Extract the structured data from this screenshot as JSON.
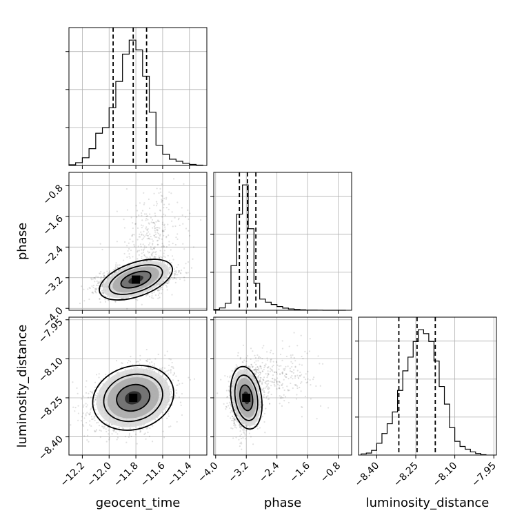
{
  "chart_data": {
    "type": "corner",
    "title": "",
    "parameters": [
      {
        "name": "geocent_time",
        "label": "geocent_time",
        "range": [
          -12.3,
          -11.27
        ],
        "ticks": [
          -12.2,
          -12.0,
          -11.8,
          -11.6,
          -11.4
        ],
        "tick_labels": [
          "−12.2",
          "−12.0",
          "−11.8",
          "−11.6",
          "−11.4"
        ]
      },
      {
        "name": "phase",
        "label": "phase",
        "range": [
          -4.05,
          -0.45
        ],
        "ticks": [
          -4.0,
          -3.2,
          -2.4,
          -1.6,
          -0.8
        ],
        "tick_labels": [
          "−4.0",
          "−3.2",
          "−2.4",
          "−1.6",
          "−0.8"
        ]
      },
      {
        "name": "luminosity_distance",
        "label": "luminosity_distance",
        "range": [
          -8.47,
          -7.94
        ],
        "ticks": [
          -8.4,
          -8.25,
          -8.1,
          -7.95
        ],
        "tick_labels": [
          "−8.40",
          "−8.25",
          "−8.10",
          "−7.95"
        ]
      }
    ],
    "grid": true,
    "quantile_lines": [
      [
        -11.97,
        -11.82,
        -11.72
      ],
      [
        -3.38,
        -3.17,
        -2.95
      ],
      [
        -8.315,
        -8.245,
        -8.175
      ]
    ],
    "histograms": [
      {
        "bin_edges": [
          -12.3,
          -12.25,
          -12.2,
          -12.15,
          -12.1,
          -12.05,
          -12.0,
          -11.95,
          -11.9,
          -11.85,
          -11.8,
          -11.75,
          -11.7,
          -11.65,
          -11.6,
          -11.55,
          -11.5,
          -11.45,
          -11.4,
          -11.35,
          -11.3
        ],
        "counts": [
          2,
          8,
          22,
          48,
          92,
          108,
          165,
          240,
          318,
          358,
          330,
          255,
          152,
          58,
          32,
          18,
          12,
          6,
          3,
          1
        ]
      },
      {
        "bin_edges": [
          -4.05,
          -3.9,
          -3.75,
          -3.6,
          -3.45,
          -3.3,
          -3.15,
          -3.0,
          -2.85,
          -2.7,
          -2.55,
          -2.4,
          -2.25,
          -2.1,
          -1.95,
          -1.8,
          -1.65,
          -1.5,
          -1.35,
          -1.2,
          -1.05,
          -0.9,
          -0.75,
          -0.6
        ],
        "counts": [
          10,
          30,
          90,
          580,
          1250,
          1630,
          1060,
          350,
          145,
          105,
          75,
          48,
          28,
          17,
          10,
          6,
          3,
          2,
          1,
          0,
          0,
          0,
          0
        ]
      },
      {
        "bin_edges": [
          -8.46,
          -8.44,
          -8.42,
          -8.4,
          -8.38,
          -8.36,
          -8.34,
          -8.32,
          -8.3,
          -8.28,
          -8.26,
          -8.24,
          -8.22,
          -8.2,
          -8.18,
          -8.16,
          -8.14,
          -8.12,
          -8.1,
          -8.08,
          -8.06,
          -8.04,
          -8.02,
          -8.0,
          -7.98
        ],
        "counts": [
          3,
          5,
          12,
          30,
          55,
          80,
          110,
          165,
          215,
          250,
          290,
          320,
          310,
          290,
          240,
          175,
          130,
          70,
          35,
          22,
          15,
          8,
          4,
          1
        ]
      }
    ],
    "scatter_2d": [
      {
        "x": "geocent_time",
        "y": "phase",
        "center": [
          -11.8,
          -3.25
        ],
        "sigma": [
          0.13,
          0.2
        ],
        "corr": 0.35,
        "n": 2200,
        "tail": {
          "center": [
            -11.68,
            -2.2
          ],
          "sigma": [
            0.12,
            0.65
          ],
          "n": 350
        },
        "contour_levels": [
          0.39,
          0.86,
          0.99
        ]
      },
      {
        "x": "geocent_time",
        "y": "luminosity_distance",
        "center": [
          -11.82,
          -8.25
        ],
        "sigma": [
          0.14,
          0.055
        ],
        "corr": 0.3,
        "n": 2400,
        "contour_levels": [
          0.39,
          0.86,
          0.99
        ]
      },
      {
        "x": "phase",
        "y": "luminosity_distance",
        "center": [
          -3.2,
          -8.25
        ],
        "sigma": [
          0.18,
          0.055
        ],
        "corr": 0.15,
        "n": 2200,
        "tail": {
          "center": [
            -2.4,
            -8.17
          ],
          "sigma": [
            0.55,
            0.06
          ],
          "n": 300
        },
        "contour_levels": [
          0.39,
          0.86,
          0.99
        ]
      }
    ]
  }
}
